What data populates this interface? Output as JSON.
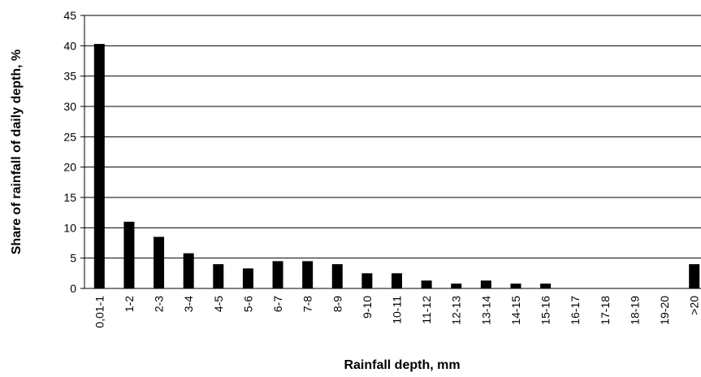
{
  "chart_data": {
    "type": "bar",
    "x_label": "Rainfall depth, mm",
    "y_label": "Share of rainfall of daily depth, %",
    "categories": [
      "0,01-1",
      "1-2",
      "2-3",
      "3-4",
      "4-5",
      "5-6",
      "6-7",
      "7-8",
      "8-9",
      "9-10",
      "10-11",
      "11-12",
      "12-13",
      "13-14",
      "14-15",
      "15-16",
      "16-17",
      "17-18",
      "18-19",
      "19-20",
      ">20"
    ],
    "values": [
      40.3,
      11,
      8.5,
      5.8,
      4,
      3.3,
      4.5,
      4.5,
      4,
      2.5,
      2.5,
      1.3,
      0.8,
      1.3,
      0.8,
      0.8,
      0,
      0,
      0,
      0,
      4
    ],
    "color": "#000000",
    "ylim": [
      0,
      45
    ],
    "yticks": [
      0,
      5,
      10,
      15,
      20,
      25,
      30,
      35,
      40,
      45
    ],
    "grid": true
  }
}
